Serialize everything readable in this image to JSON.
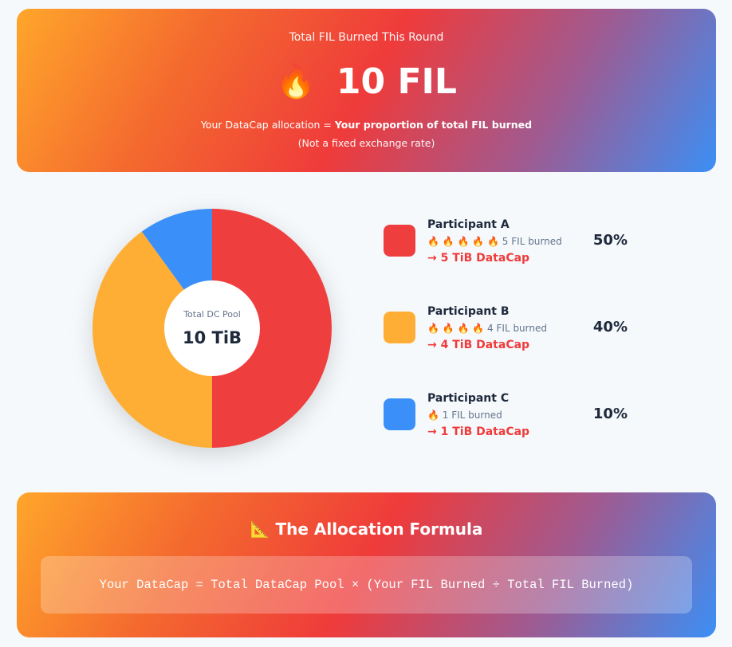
{
  "hero": {
    "subtitle": "Total FIL Burned This Round",
    "flame_icon": "🔥",
    "total": "10 FIL",
    "allocation_prefix": "Your DataCap allocation = ",
    "allocation_bold": "Your proportion of total FIL burned",
    "note": "(Not a fixed exchange rate)"
  },
  "chart_data": {
    "type": "pie",
    "donut": true,
    "center_label": "Total DC Pool",
    "center_value": "10 TiB",
    "categories": [
      "Participant A",
      "Participant B",
      "Participant C"
    ],
    "values": [
      50,
      40,
      10
    ],
    "colors": [
      "#ef3e3e",
      "#ffae35",
      "#3b8ff8"
    ]
  },
  "legend": [
    {
      "name": "Participant A",
      "flames": "🔥 🔥 🔥 🔥 🔥",
      "burned": "5 FIL burned",
      "datacap": "→ 5 TiB DataCap",
      "percent": "50%",
      "color": "#ef3e3e"
    },
    {
      "name": "Participant B",
      "flames": "🔥 🔥 🔥 🔥",
      "burned": "4 FIL burned",
      "datacap": "→ 4 TiB DataCap",
      "percent": "40%",
      "color": "#ffae35"
    },
    {
      "name": "Participant C",
      "flames": "🔥",
      "burned": "1 FIL burned",
      "datacap": "→ 1 TiB DataCap",
      "percent": "10%",
      "color": "#3b8ff8"
    }
  ],
  "formula": {
    "icon": "📐",
    "title": "The Allocation Formula",
    "expression": "Your DataCap = Total DataCap Pool × (Your FIL Burned ÷ Total FIL Burned)"
  }
}
